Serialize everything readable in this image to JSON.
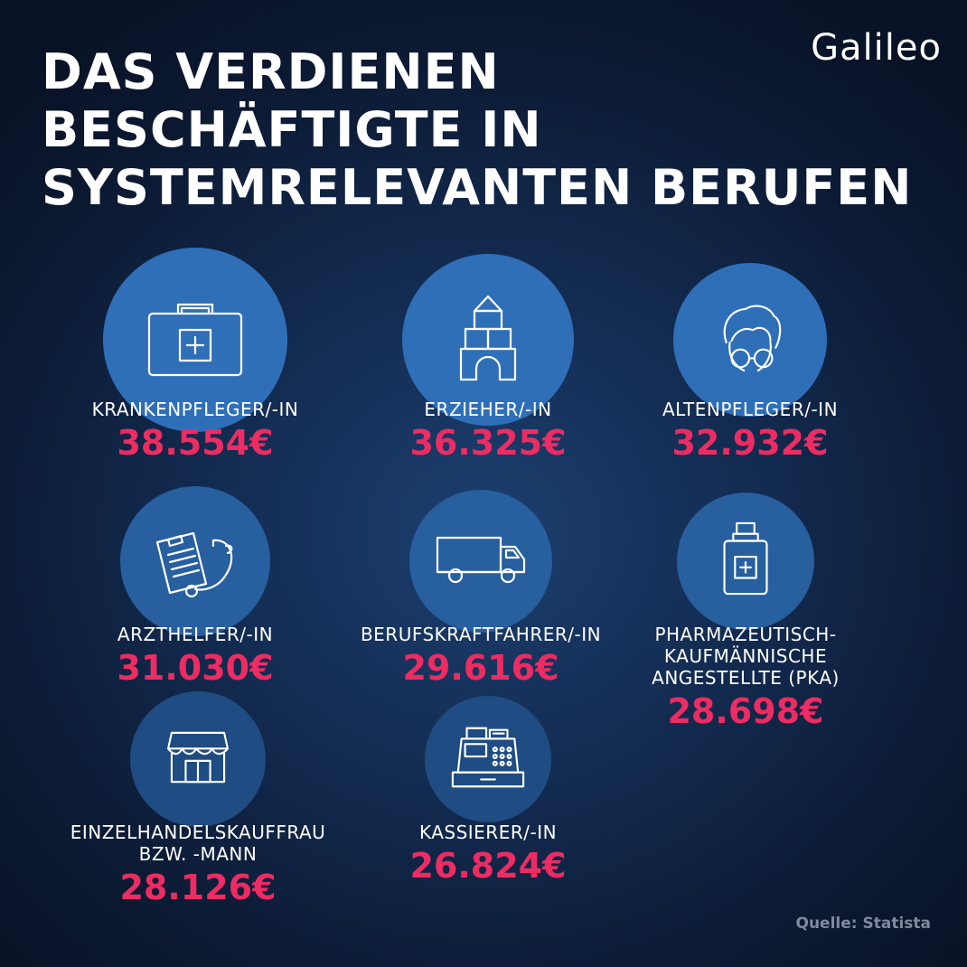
{
  "header": {
    "title_lines": [
      "DAS VERDIENEN",
      "BESCHÄFTIGTE IN",
      "SYSTEMRELEVANTEN BERUFEN"
    ],
    "logo": "Galileo"
  },
  "source": "Quelle: Statista",
  "colors": {
    "value": "#ec2c62",
    "circle_strong": "#2f6fb8",
    "circle_mid": "#275f9f",
    "circle_soft": "#1f4c82"
  },
  "chart_data": {
    "type": "table",
    "title": "DAS VERDIENEN BESCHÄFTIGTE IN SYSTEMRELEVANTEN BERUFEN",
    "unit": "€",
    "categories": [
      "KRANKENPFLEGER/-IN",
      "ERZIEHER/-IN",
      "ALTENPFLEGER/-IN",
      "ARZTHELFER/-IN",
      "BERUFSKRAFTFAHRER/-IN",
      "PHARMAZEUTISCH-KAUFMÄNNISCHE ANGESTELLTE (PKA)",
      "EINZELHANDELSKAUFFRAU BZW. -MANN",
      "KASSIERER/-IN"
    ],
    "values": [
      38554,
      36325,
      32932,
      31030,
      29616,
      28698,
      28126,
      26824
    ],
    "items": [
      {
        "label_lines": [
          "KRANKENPFLEGER/-IN"
        ],
        "value": 38554,
        "value_text": "38.554€",
        "icon": "first-aid-kit-icon"
      },
      {
        "label_lines": [
          "ERZIEHER/-IN"
        ],
        "value": 36325,
        "value_text": "36.325€",
        "icon": "building-blocks-icon"
      },
      {
        "label_lines": [
          "ALTENPFLEGER/-IN"
        ],
        "value": 32932,
        "value_text": "32.932€",
        "icon": "elderly-person-icon"
      },
      {
        "label_lines": [
          "ARZTHELFER/-IN"
        ],
        "value": 31030,
        "value_text": "31.030€",
        "icon": "clipboard-stethoscope-icon"
      },
      {
        "label_lines": [
          "BERUFSKRAFTFAHRER/-IN"
        ],
        "value": 29616,
        "value_text": "29.616€",
        "icon": "truck-icon"
      },
      {
        "label_lines": [
          "PHARMAZEUTISCH-",
          "KAUFMÄNNISCHE",
          "ANGESTELLTE (PKA)"
        ],
        "value": 28698,
        "value_text": "28.698€",
        "icon": "medicine-bottle-icon"
      },
      {
        "label_lines": [
          "EINZELHANDELSKAUFFRAU",
          "BZW. -MANN"
        ],
        "value": 28126,
        "value_text": "28.126€",
        "icon": "shop-icon"
      },
      {
        "label_lines": [
          "KASSIERER/-IN"
        ],
        "value": 26824,
        "value_text": "26.824€",
        "icon": "cash-register-icon"
      }
    ]
  }
}
